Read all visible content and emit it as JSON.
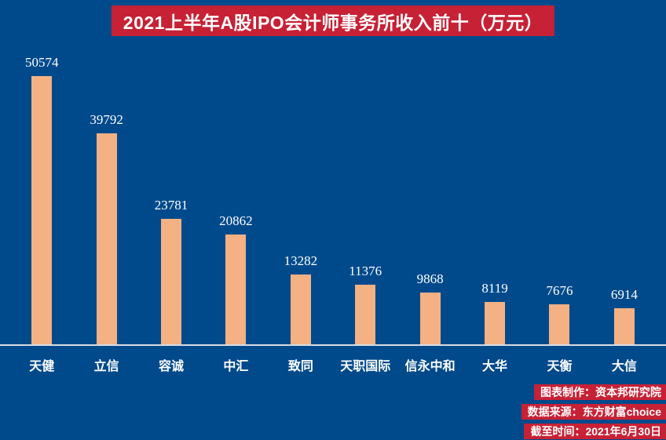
{
  "title": "2021上半年A股IPO会计师事务所收入前十（万元）",
  "chart_data": {
    "type": "bar",
    "title": "2021上半年A股IPO会计师事务所收入前十（万元）",
    "categories": [
      "天健",
      "立信",
      "容诚",
      "中汇",
      "致同",
      "天职国际",
      "信永中和",
      "大华",
      "天衡",
      "大信"
    ],
    "values": [
      50574,
      39792,
      23781,
      20862,
      13282,
      11376,
      9868,
      8119,
      7676,
      6914
    ],
    "unit": "万元",
    "xlabel": "",
    "ylabel": "",
    "ylim": [
      0,
      50574
    ],
    "grid": "off",
    "legend": "none",
    "data_labels": "above-bars",
    "bar_color": "#f4b183",
    "background_color": "#004a8c",
    "accent_color": "#c72135",
    "label_color": "#ffffff",
    "baseline_color": "#d9dde2"
  },
  "footer": {
    "lines": [
      "图表制作：资本邦研究院",
      "数据来源：东方财富choice",
      "截至时间：2021年6月30日"
    ]
  }
}
